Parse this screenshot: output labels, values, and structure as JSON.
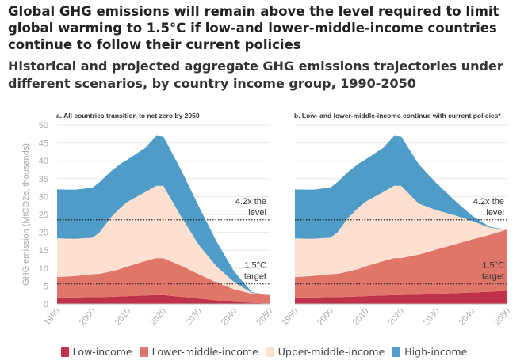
{
  "title": "Global GHG emissions will remain above the level required to limit global warming to 1.5°C if low-and lower-middle-income countries continue to follow their current policies",
  "subtitle": "Historical and projected aggregate GHG emissions trajectories under different scenarios, by country income group, 1990-2050",
  "colors": {
    "low": "#c0324a",
    "lower_middle": "#e0756a",
    "upper_middle": "#fde0d0",
    "high": "#4f9cc8"
  },
  "legend": [
    {
      "name": "Low-income",
      "color": "#c0324a"
    },
    {
      "name": "Lower-middle-income",
      "color": "#e0756a"
    },
    {
      "name": "Upper-middle-income",
      "color": "#fde0d0"
    },
    {
      "name": "High-income",
      "color": "#4f9cc8"
    }
  ],
  "chart_data": [
    {
      "type": "area",
      "stacked": true,
      "title": "a. All countries transition to net zero by 2050",
      "ylabel": "GHG emission (MtCO2e, thousands)",
      "xlim": [
        1990,
        2050
      ],
      "ylim": [
        0,
        50
      ],
      "x_ticks": [
        1990,
        2000,
        2010,
        2020,
        2030,
        2040,
        2050
      ],
      "y_ticks": [
        0,
        5,
        10,
        15,
        20,
        25,
        30,
        35,
        40,
        45,
        50
      ],
      "x": [
        1990,
        1995,
        2000,
        2002,
        2005,
        2008,
        2010,
        2015,
        2018,
        2020,
        2025,
        2030,
        2035,
        2040,
        2045,
        2050
      ],
      "series": [
        {
          "name": "Low-income",
          "values": [
            1.8,
            1.8,
            1.9,
            1.9,
            2.0,
            2.1,
            2.2,
            2.4,
            2.5,
            2.5,
            2.0,
            1.5,
            1.0,
            0.6,
            0.3,
            0.1
          ]
        },
        {
          "name": "Lower-middle-income",
          "values": [
            5.7,
            6.0,
            6.4,
            6.5,
            7.0,
            7.7,
            8.3,
            9.6,
            10.3,
            10.3,
            8.7,
            6.8,
            5.0,
            3.5,
            2.5,
            2.4
          ]
        },
        {
          "name": "Upper-middle-income",
          "values": [
            10.8,
            10.4,
            10.2,
            11.6,
            15.0,
            17.2,
            18.1,
            19.3,
            20.2,
            20.2,
            13.8,
            8.2,
            4.5,
            2.0,
            0.3,
            0.0
          ]
        },
        {
          "name": "High-income",
          "values": [
            13.7,
            13.7,
            14.0,
            14.0,
            12.9,
            12.2,
            11.8,
            12.4,
            14.0,
            13.8,
            13.0,
            10.8,
            7.0,
            3.0,
            0.2,
            0.0
          ]
        }
      ],
      "reference_lines": [
        {
          "label": "4.2x the level",
          "value": 23.5
        },
        {
          "label": "1.5°C target",
          "value": 5.6
        }
      ]
    },
    {
      "type": "area",
      "stacked": true,
      "title": "b. Low- and lower-middle-income continue with current policies*",
      "ylabel": "GHG emission (MtCO2e, thousands)",
      "xlim": [
        1990,
        2050
      ],
      "ylim": [
        0,
        50
      ],
      "x_ticks": [
        1990,
        2000,
        2010,
        2020,
        2030,
        2040,
        2050
      ],
      "y_ticks": [
        0,
        5,
        10,
        15,
        20,
        25,
        30,
        35,
        40,
        45,
        50
      ],
      "x": [
        1990,
        1995,
        2000,
        2002,
        2005,
        2008,
        2010,
        2015,
        2018,
        2020,
        2025,
        2030,
        2035,
        2040,
        2045,
        2050
      ],
      "series": [
        {
          "name": "Low-income",
          "values": [
            1.8,
            1.8,
            1.9,
            1.9,
            2.0,
            2.1,
            2.2,
            2.4,
            2.5,
            2.5,
            2.6,
            2.8,
            3.0,
            3.2,
            3.4,
            3.7
          ]
        },
        {
          "name": "Lower-middle-income",
          "values": [
            5.7,
            6.0,
            6.4,
            6.5,
            7.0,
            7.7,
            8.3,
            9.6,
            10.3,
            10.3,
            11.2,
            12.4,
            13.6,
            14.8,
            15.9,
            17.1
          ]
        },
        {
          "name": "Upper-middle-income",
          "values": [
            10.8,
            10.4,
            10.2,
            11.6,
            15.0,
            17.2,
            18.1,
            19.3,
            20.2,
            20.2,
            14.2,
            11.0,
            8.2,
            5.2,
            2.0,
            0.0
          ]
        },
        {
          "name": "High-income",
          "values": [
            13.7,
            13.7,
            14.0,
            14.0,
            12.9,
            12.2,
            11.8,
            12.4,
            14.0,
            13.8,
            11.0,
            7.5,
            4.2,
            1.5,
            0.2,
            0.0
          ]
        }
      ],
      "reference_lines": [
        {
          "label": "4.2x the level",
          "value": 23.5
        },
        {
          "label": "1.5°C target",
          "value": 5.6
        }
      ]
    }
  ]
}
